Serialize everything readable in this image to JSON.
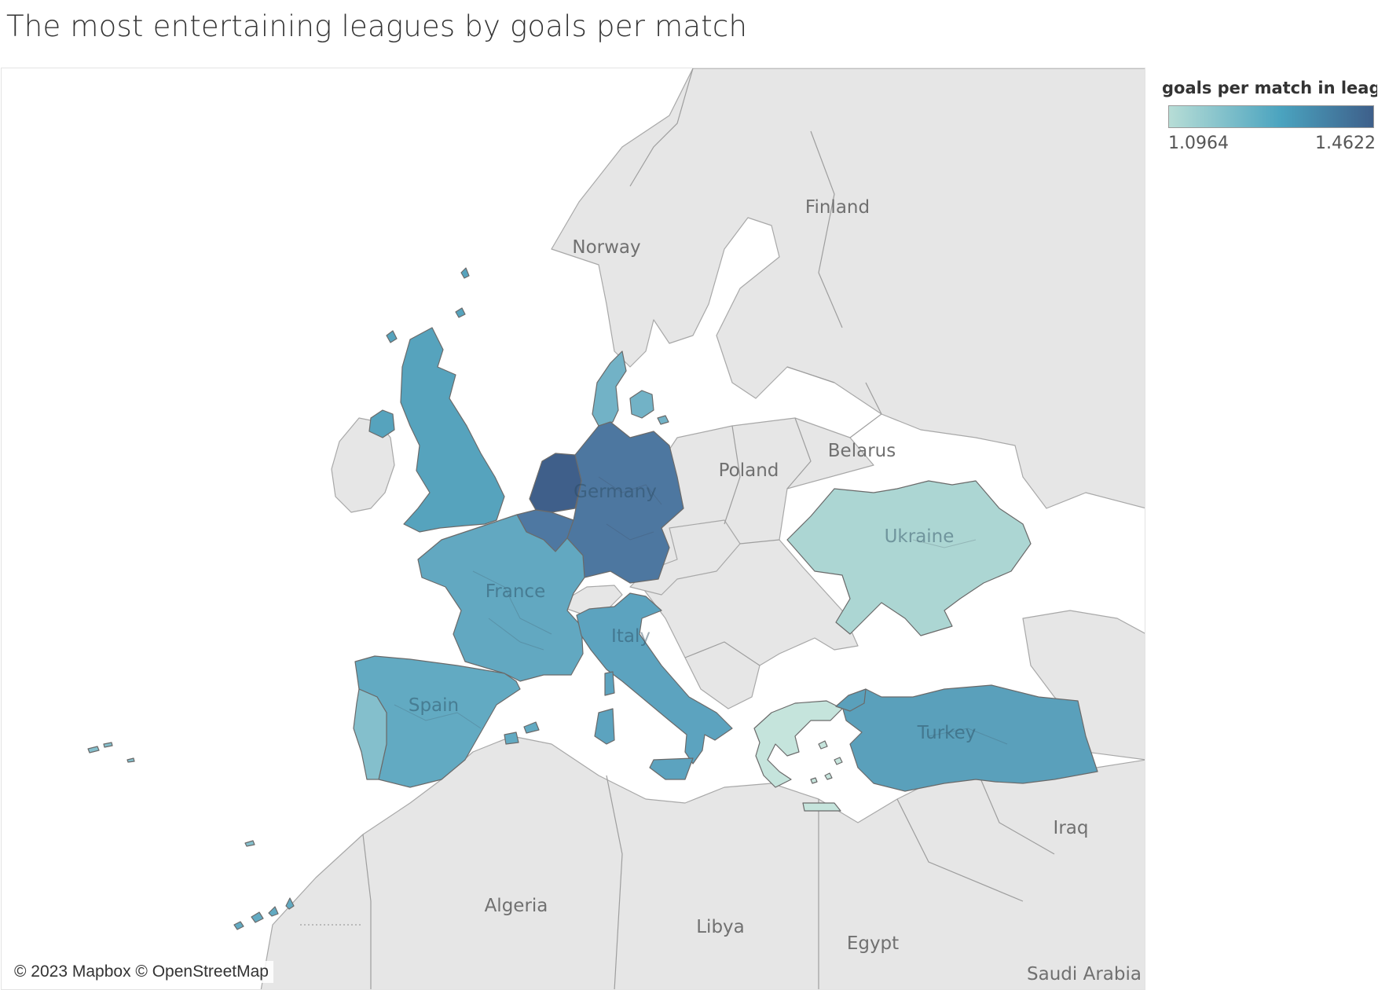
{
  "title": "The most entertaining leagues by goals per match",
  "legend": {
    "title": "goals per match in leag..",
    "min_label": "1.0964",
    "max_label": "1.4622",
    "color_low": "#b7ddd6",
    "color_high": "#3e5f8a"
  },
  "map": {
    "type": "choropleth",
    "attribution": "© 2023 Mapbox © OpenStreetMap",
    "highlighted_countries": [
      {
        "label": "Germany",
        "shown_value_fraction": 0.92,
        "color": "#4d77a0"
      },
      {
        "label": "France",
        "shown_value_fraction": 0.6,
        "color": "#62a8c1"
      },
      {
        "label": "Italy",
        "shown_value_fraction": 0.65,
        "color": "#5ca3bf"
      },
      {
        "label": "Spain",
        "shown_value_fraction": 0.62,
        "color": "#62aac2"
      },
      {
        "label": "Turkey",
        "shown_value_fraction": 0.66,
        "color": "#5aa0bb"
      },
      {
        "label": "Ukraine",
        "shown_value_fraction": 0.1,
        "color": "#acd6d3"
      }
    ],
    "unlabeled_highlighted_regions": [
      {
        "region": "netherlands",
        "shown_value_fraction": 1.0,
        "color": "#3f5f8a"
      },
      {
        "region": "belgium",
        "shown_value_fraction": 0.85,
        "color": "#4e78a2"
      },
      {
        "region": "united-kingdom",
        "shown_value_fraction": 0.68,
        "color": "#56a3bd"
      },
      {
        "region": "denmark",
        "shown_value_fraction": 0.55,
        "color": "#72b2c6"
      },
      {
        "region": "portugal",
        "shown_value_fraction": 0.4,
        "color": "#84bfcc"
      },
      {
        "region": "greece",
        "shown_value_fraction": 0.0,
        "color": "#c5e4dc"
      }
    ],
    "base_map_labels": [
      "Finland",
      "Norway",
      "Belarus",
      "Poland",
      "Iraq",
      "Algeria",
      "Libya",
      "Egypt",
      "Saudi Arabia"
    ]
  }
}
